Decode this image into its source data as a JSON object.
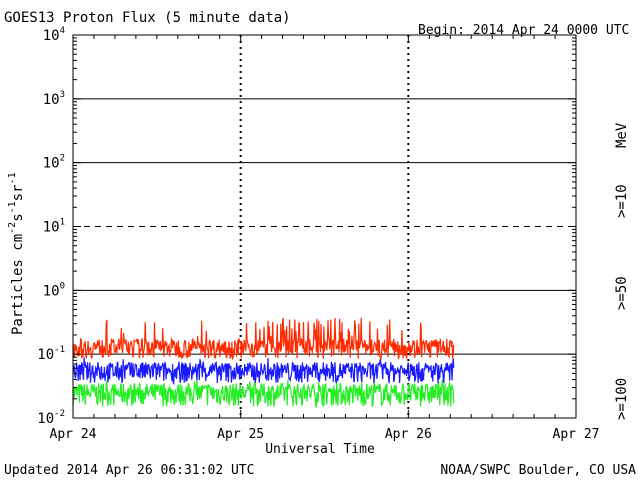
{
  "chart_data": {
    "type": "line",
    "title": "GOES13 Proton Flux (5 minute data)",
    "begin_label": "Begin: 2014 Apr 24 0000 UTC",
    "xlabel": "Universal Time",
    "ylabel": "Particles cm-2s-1sr-1",
    "ylabel_parts": {
      "main": "Particles cm",
      "exp1": "-2",
      "mid1": "s",
      "exp2": "-1",
      "mid2": "sr",
      "exp3": "-1"
    },
    "y_scale": "log",
    "ylim": [
      0.01,
      10000
    ],
    "y_ticks": [
      {
        "base": "10",
        "exp": "4"
      },
      {
        "base": "10",
        "exp": "3"
      },
      {
        "base": "10",
        "exp": "2"
      },
      {
        "base": "10",
        "exp": "1"
      },
      {
        "base": "10",
        "exp": "0"
      },
      {
        "base": "10",
        "exp": "-1"
      },
      {
        "base": "10",
        "exp": "-2"
      }
    ],
    "x_tick_labels": [
      "Apr 24",
      "Apr 25",
      "Apr 26",
      "Apr 27"
    ],
    "xlim_days": [
      0,
      3
    ],
    "unit_label": "MeV",
    "series": [
      {
        "name": ">=10",
        "color": "#ff2a00",
        "baseline": 0.13,
        "spread": 0.045,
        "spike_max": 0.35
      },
      {
        "name": ">=50",
        "color": "#1a1aff",
        "baseline": 0.055,
        "spread": 0.02,
        "spike_max": 0.09
      },
      {
        "name": ">=100",
        "color": "#22ee22",
        "baseline": 0.025,
        "spread": 0.01,
        "spike_max": 0.04
      }
    ],
    "data_end_day": 2.27,
    "threshold_lines": [
      {
        "value": 0.1,
        "style": "solid"
      },
      {
        "value": 10,
        "style": "dashed"
      },
      {
        "value": 1,
        "style": "solid"
      },
      {
        "value": 100,
        "style": "solid"
      },
      {
        "value": 1000,
        "style": "solid"
      }
    ],
    "grid": true
  },
  "footer": {
    "updated": "Updated 2014 Apr 26 06:31:02 UTC",
    "source": "NOAA/SWPC Boulder, CO USA"
  }
}
